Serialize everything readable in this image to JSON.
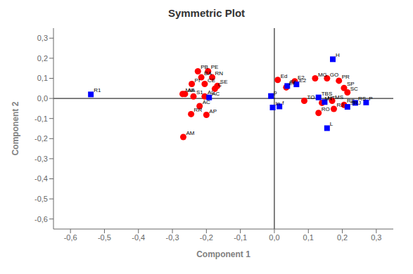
{
  "chart_data": {
    "type": "scatter",
    "title": "Symmetric Plot",
    "xlabel": "Component 1",
    "ylabel": "Component 2",
    "xlim": [
      -0.65,
      0.35
    ],
    "ylim": [
      -0.65,
      0.35
    ],
    "xticks": [
      {
        "value": -0.6,
        "label": "-0,6"
      },
      {
        "value": -0.5,
        "label": "-0,5"
      },
      {
        "value": -0.4,
        "label": "-0,4"
      },
      {
        "value": -0.3,
        "label": "-0,3"
      },
      {
        "value": -0.2,
        "label": "-0,2"
      },
      {
        "value": -0.1,
        "label": "-0,1"
      },
      {
        "value": 0.0,
        "label": "0,0"
      },
      {
        "value": 0.1,
        "label": "0,1"
      },
      {
        "value": 0.2,
        "label": "0,2"
      },
      {
        "value": 0.3,
        "label": "0,3"
      }
    ],
    "yticks": [
      {
        "value": -0.6,
        "label": "-0,6"
      },
      {
        "value": -0.5,
        "label": "-0,5"
      },
      {
        "value": -0.4,
        "label": "-0,4"
      },
      {
        "value": -0.3,
        "label": "-0,3"
      },
      {
        "value": -0.2,
        "label": "-0,2"
      },
      {
        "value": -0.1,
        "label": "-0,1"
      },
      {
        "value": 0.0,
        "label": "0,0"
      },
      {
        "value": 0.1,
        "label": "0,1"
      },
      {
        "value": 0.2,
        "label": "0,2"
      },
      {
        "value": 0.3,
        "label": "0,3"
      }
    ],
    "grid": false,
    "series": [
      {
        "color": "red",
        "marker": "circle",
        "points": [
          {
            "label": "PB",
            "x": -0.225,
            "y": 0.135
          },
          {
            "label": "PE",
            "x": -0.195,
            "y": 0.135
          },
          {
            "label": "BA",
            "x": -0.215,
            "y": 0.105
          },
          {
            "label": "RN",
            "x": -0.183,
            "y": 0.105
          },
          {
            "label": "PI",
            "x": -0.243,
            "y": 0.072
          },
          {
            "label": "CE",
            "x": -0.205,
            "y": 0.072
          },
          {
            "label": "SE",
            "x": -0.168,
            "y": 0.062
          },
          {
            "label": "MA",
            "x": -0.27,
            "y": 0.022
          },
          {
            "label": "AA",
            "x": -0.263,
            "y": 0.022
          },
          {
            "label": "S1",
            "x": -0.238,
            "y": 0.01
          },
          {
            "label": "AL",
            "x": -0.205,
            "y": 0.01
          },
          {
            "label": "C",
            "x": -0.175,
            "y": 0.048
          },
          {
            "label": "AC",
            "x": -0.22,
            "y": -0.038
          },
          {
            "label": "RR",
            "x": -0.245,
            "y": -0.078
          },
          {
            "label": "AP",
            "x": -0.2,
            "y": -0.082
          },
          {
            "label": "AM",
            "x": -0.268,
            "y": -0.192
          },
          {
            "label": "Ed",
            "x": 0.01,
            "y": 0.092
          },
          {
            "label": "E2",
            "x": 0.06,
            "y": 0.085
          },
          {
            "label": "Ef",
            "x": 0.035,
            "y": 0.055
          },
          {
            "label": "MG",
            "x": 0.12,
            "y": 0.1
          },
          {
            "label": "GO",
            "x": 0.155,
            "y": 0.1
          },
          {
            "label": "PR",
            "x": 0.19,
            "y": 0.088
          },
          {
            "label": "SP",
            "x": 0.205,
            "y": 0.052
          },
          {
            "label": "SC",
            "x": 0.215,
            "y": 0.03
          },
          {
            "label": "RO",
            "x": 0.13,
            "y": -0.072
          },
          {
            "label": "RJ",
            "x": 0.175,
            "y": -0.052
          },
          {
            "label": "RS",
            "x": 0.205,
            "y": -0.032
          },
          {
            "label": "TO",
            "x": 0.088,
            "y": -0.012
          },
          {
            "label": "MT",
            "x": 0.14,
            "y": -0.022
          },
          {
            "label": "MS",
            "x": 0.17,
            "y": -0.012
          }
        ]
      },
      {
        "color": "blue",
        "marker": "square",
        "points": [
          {
            "label": "R1",
            "x": -0.54,
            "y": 0.02
          },
          {
            "label": "p",
            "x": -0.01,
            "y": 0.012
          },
          {
            "label": "AC",
            "x": -0.192,
            "y": 0.005
          },
          {
            "label": "Ef",
            "x": 0.038,
            "y": 0.062
          },
          {
            "label": "E2",
            "x": 0.065,
            "y": 0.07
          },
          {
            "label": "H",
            "x": 0.172,
            "y": 0.195
          },
          {
            "label": "TBS",
            "x": 0.13,
            "y": 0.005
          },
          {
            "label": "L",
            "x": 0.155,
            "y": -0.148
          },
          {
            "label": "In",
            "x": -0.005,
            "y": -0.045
          },
          {
            "label": "f",
            "x": 0.015,
            "y": -0.04
          },
          {
            "label": "P",
            "x": 0.27,
            "y": -0.02
          },
          {
            "label": "SRJ",
            "x": 0.215,
            "y": -0.042
          },
          {
            "label": "NT",
            "x": 0.148,
            "y": -0.018
          },
          {
            "label": "RS",
            "x": 0.238,
            "y": -0.022
          }
        ]
      }
    ]
  }
}
